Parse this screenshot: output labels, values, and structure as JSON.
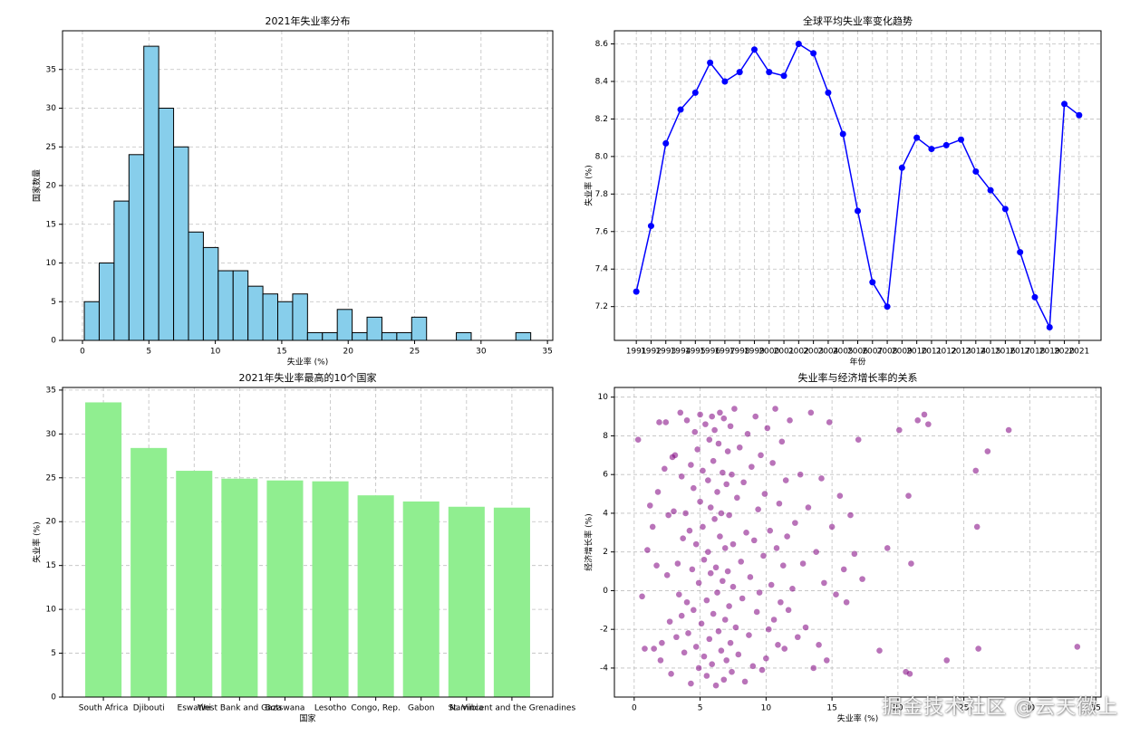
{
  "watermark": "掘金技术社区 @云天徽上",
  "chart_data": [
    {
      "type": "bar",
      "subtype": "histogram",
      "title": "2021年失业率分布",
      "xlabel": "失业率 (%)",
      "ylabel": "国家数量",
      "bin_edges": [
        0.14,
        1.26,
        2.38,
        3.5,
        4.62,
        5.74,
        6.86,
        7.98,
        9.1,
        10.22,
        11.34,
        12.46,
        13.58,
        14.7,
        15.82,
        16.94,
        18.06,
        19.18,
        20.3,
        21.42,
        22.54,
        23.66,
        24.78,
        25.9,
        27.02,
        28.14,
        29.26,
        30.38,
        31.5,
        32.62,
        33.74
      ],
      "values": [
        5,
        10,
        18,
        24,
        38,
        30,
        25,
        14,
        12,
        9,
        9,
        7,
        6,
        5,
        6,
        1,
        1,
        4,
        1,
        3,
        1,
        1,
        3,
        0,
        0,
        1,
        0,
        0,
        0,
        1
      ],
      "xlim": [
        -1.5,
        35.4
      ],
      "ylim": [
        0,
        40
      ],
      "xticks": [
        0,
        5,
        10,
        15,
        20,
        25,
        30,
        35
      ],
      "yticks": [
        0,
        5,
        10,
        15,
        20,
        25,
        30,
        35
      ],
      "color": "#87ceeb",
      "edgecolor": "#000000",
      "grid": true
    },
    {
      "type": "line",
      "title": "全球平均失业率变化趋势",
      "xlabel": "年份",
      "ylabel": "失业率 (%)",
      "x": [
        "1991",
        "1992",
        "1993",
        "1994",
        "1995",
        "1996",
        "1997",
        "1998",
        "1999",
        "2000",
        "2001",
        "2002",
        "2003",
        "2004",
        "2005",
        "2006",
        "2007",
        "2008",
        "2009",
        "2010",
        "2011",
        "2012",
        "2013",
        "2014",
        "2015",
        "2016",
        "2017",
        "2018",
        "2019",
        "2020",
        "2021"
      ],
      "values": [
        7.28,
        7.63,
        8.07,
        8.25,
        8.34,
        8.5,
        8.4,
        8.45,
        8.57,
        8.45,
        8.43,
        8.6,
        8.55,
        8.34,
        8.12,
        7.71,
        7.33,
        7.2,
        7.94,
        8.1,
        8.04,
        8.06,
        8.09,
        7.92,
        7.82,
        7.72,
        7.49,
        7.25,
        7.09,
        8.28,
        8.22
      ],
      "ylim": [
        7.02,
        8.67
      ],
      "yticks": [
        7.2,
        7.4,
        7.6,
        7.8,
        8.0,
        8.2,
        8.4,
        8.6
      ],
      "color": "#0000ff",
      "marker": "circle",
      "grid": true
    },
    {
      "type": "bar",
      "title": "2021年失业率最高的10个国家",
      "xlabel": "国家",
      "ylabel": "失业率 (%)",
      "categories": [
        "South Africa",
        "Djibouti",
        "Eswatini",
        "West Bank and Gaza",
        "Botswana",
        "Lesotho",
        "Congo, Rep.",
        "Gabon",
        "Namibia",
        "St. Vincent and the Grenadines"
      ],
      "values": [
        33.6,
        28.4,
        25.8,
        24.9,
        24.7,
        24.6,
        23.0,
        22.3,
        21.7,
        21.6
      ],
      "ylim": [
        0,
        35.3
      ],
      "yticks": [
        0,
        5,
        10,
        15,
        20,
        25,
        30,
        35
      ],
      "color": "#90ee90",
      "grid": true
    },
    {
      "type": "scatter",
      "title": "失业率与经济增长率的关系",
      "xlabel": "失业率 (%)",
      "ylabel": "经济增长率 (%)",
      "xlim": [
        -1.5,
        35.4
      ],
      "ylim": [
        -5.5,
        10.5
      ],
      "xticks": [
        0,
        5,
        10,
        15,
        20,
        25,
        30,
        35
      ],
      "yticks": [
        -4,
        -2,
        0,
        2,
        4,
        6,
        8,
        10
      ],
      "color": "#800080",
      "alpha": 0.55,
      "grid": true,
      "points": [
        [
          0.3,
          7.8
        ],
        [
          0.6,
          -0.3
        ],
        [
          0.8,
          -3.0
        ],
        [
          1.0,
          2.1
        ],
        [
          1.2,
          4.4
        ],
        [
          1.4,
          3.3
        ],
        [
          1.5,
          -3.0
        ],
        [
          1.7,
          1.3
        ],
        [
          1.8,
          5.1
        ],
        [
          1.9,
          8.7
        ],
        [
          2.0,
          -3.6
        ],
        [
          2.1,
          -2.7
        ],
        [
          2.3,
          6.3
        ],
        [
          2.4,
          8.7
        ],
        [
          2.5,
          0.8
        ],
        [
          2.6,
          3.9
        ],
        [
          2.7,
          -1.6
        ],
        [
          2.8,
          -4.3
        ],
        [
          2.9,
          6.9
        ],
        [
          3.0,
          4.1
        ],
        [
          3.1,
          7.0
        ],
        [
          3.2,
          -2.4
        ],
        [
          3.3,
          1.4
        ],
        [
          3.4,
          -0.2
        ],
        [
          3.5,
          9.2
        ],
        [
          3.6,
          5.9
        ],
        [
          3.6,
          -1.3
        ],
        [
          3.7,
          2.7
        ],
        [
          3.8,
          -3.2
        ],
        [
          3.9,
          4.0
        ],
        [
          4.0,
          8.8
        ],
        [
          4.0,
          -0.6
        ],
        [
          4.1,
          -2.2
        ],
        [
          4.2,
          3.1
        ],
        [
          4.3,
          6.5
        ],
        [
          4.3,
          -4.8
        ],
        [
          4.4,
          1.1
        ],
        [
          4.5,
          5.3
        ],
        [
          4.5,
          -1.0
        ],
        [
          4.6,
          8.2
        ],
        [
          4.7,
          -2.9
        ],
        [
          4.7,
          2.4
        ],
        [
          4.8,
          7.3
        ],
        [
          4.9,
          -4.0
        ],
        [
          4.9,
          0.4
        ],
        [
          5.0,
          4.6
        ],
        [
          5.0,
          9.1
        ],
        [
          5.1,
          -1.7
        ],
        [
          5.2,
          3.3
        ],
        [
          5.2,
          6.2
        ],
        [
          5.3,
          -3.4
        ],
        [
          5.3,
          1.6
        ],
        [
          5.4,
          8.6
        ],
        [
          5.5,
          -4.4
        ],
        [
          5.5,
          -0.5
        ],
        [
          5.6,
          5.7
        ],
        [
          5.6,
          2.0
        ],
        [
          5.7,
          7.8
        ],
        [
          5.7,
          -2.5
        ],
        [
          5.8,
          4.3
        ],
        [
          5.8,
          0.9
        ],
        [
          5.9,
          9.0
        ],
        [
          5.9,
          -3.8
        ],
        [
          6.0,
          6.7
        ],
        [
          6.0,
          -1.2
        ],
        [
          6.1,
          3.7
        ],
        [
          6.1,
          8.3
        ],
        [
          6.2,
          -4.9
        ],
        [
          6.2,
          1.2
        ],
        [
          6.3,
          5.1
        ],
        [
          6.3,
          -0.1
        ],
        [
          6.4,
          7.6
        ],
        [
          6.4,
          -2.1
        ],
        [
          6.5,
          2.8
        ],
        [
          6.5,
          9.2
        ],
        [
          6.6,
          -3.1
        ],
        [
          6.6,
          4.0
        ],
        [
          6.7,
          0.5
        ],
        [
          6.7,
          6.1
        ],
        [
          6.8,
          -4.6
        ],
        [
          6.8,
          8.9
        ],
        [
          6.9,
          2.2
        ],
        [
          6.9,
          -1.5
        ],
        [
          7.0,
          5.5
        ],
        [
          7.0,
          -3.6
        ],
        [
          7.1,
          7.2
        ],
        [
          7.1,
          1.0
        ],
        [
          7.2,
          -0.8
        ],
        [
          7.2,
          3.9
        ],
        [
          7.3,
          8.5
        ],
        [
          7.3,
          -2.7
        ],
        [
          7.4,
          6.0
        ],
        [
          7.4,
          -4.2
        ],
        [
          7.5,
          2.4
        ],
        [
          7.5,
          0.2
        ],
        [
          7.6,
          9.4
        ],
        [
          7.7,
          -1.9
        ],
        [
          7.8,
          4.8
        ],
        [
          7.9,
          -3.3
        ],
        [
          8.0,
          7.4
        ],
        [
          8.1,
          1.5
        ],
        [
          8.2,
          -0.4
        ],
        [
          8.3,
          5.6
        ],
        [
          8.4,
          -4.7
        ],
        [
          8.5,
          3.0
        ],
        [
          8.6,
          8.1
        ],
        [
          8.7,
          -2.3
        ],
        [
          8.8,
          0.7
        ],
        [
          8.9,
          6.4
        ],
        [
          9.0,
          -3.9
        ],
        [
          9.1,
          2.6
        ],
        [
          9.2,
          9.0
        ],
        [
          9.3,
          -1.1
        ],
        [
          9.4,
          4.2
        ],
        [
          9.5,
          -0.1
        ],
        [
          9.6,
          7.0
        ],
        [
          9.7,
          -4.1
        ],
        [
          9.8,
          1.8
        ],
        [
          9.9,
          5.0
        ],
        [
          10.0,
          -3.5
        ],
        [
          10.1,
          8.4
        ],
        [
          10.2,
          -2.0
        ],
        [
          10.3,
          3.1
        ],
        [
          10.4,
          0.3
        ],
        [
          10.5,
          6.6
        ],
        [
          10.6,
          -1.5
        ],
        [
          10.7,
          9.4
        ],
        [
          10.8,
          2.2
        ],
        [
          10.9,
          -2.8
        ],
        [
          11.0,
          4.5
        ],
        [
          11.1,
          -0.6
        ],
        [
          11.2,
          7.7
        ],
        [
          11.3,
          1.3
        ],
        [
          11.4,
          -3.0
        ],
        [
          11.5,
          5.7
        ],
        [
          11.6,
          2.8
        ],
        [
          11.7,
          -1.0
        ],
        [
          11.8,
          8.8
        ],
        [
          12.0,
          0.1
        ],
        [
          12.2,
          3.5
        ],
        [
          12.4,
          -2.4
        ],
        [
          12.6,
          6.0
        ],
        [
          12.8,
          1.4
        ],
        [
          13.0,
          -1.9
        ],
        [
          13.2,
          4.3
        ],
        [
          13.4,
          9.2
        ],
        [
          13.6,
          -4.0
        ],
        [
          13.8,
          2.0
        ],
        [
          14.0,
          -2.8
        ],
        [
          14.2,
          5.8
        ],
        [
          14.4,
          0.4
        ],
        [
          14.6,
          -3.6
        ],
        [
          14.8,
          8.7
        ],
        [
          15.0,
          3.3
        ],
        [
          15.3,
          -0.2
        ],
        [
          15.6,
          4.9
        ],
        [
          15.9,
          1.1
        ],
        [
          16.1,
          -0.6
        ],
        [
          16.4,
          3.9
        ],
        [
          16.7,
          1.9
        ],
        [
          17.0,
          7.8
        ],
        [
          17.3,
          0.6
        ],
        [
          18.6,
          -3.1
        ],
        [
          19.2,
          2.2
        ],
        [
          20.1,
          8.3
        ],
        [
          20.6,
          -4.2
        ],
        [
          20.8,
          4.9
        ],
        [
          20.9,
          -4.3
        ],
        [
          21.0,
          1.4
        ],
        [
          21.5,
          8.8
        ],
        [
          22.0,
          9.1
        ],
        [
          22.3,
          8.6
        ],
        [
          23.7,
          -3.6
        ],
        [
          25.9,
          6.2
        ],
        [
          26.0,
          3.3
        ],
        [
          26.1,
          -3.0
        ],
        [
          26.8,
          7.2
        ],
        [
          28.4,
          8.3
        ],
        [
          33.6,
          -2.9
        ]
      ]
    }
  ]
}
